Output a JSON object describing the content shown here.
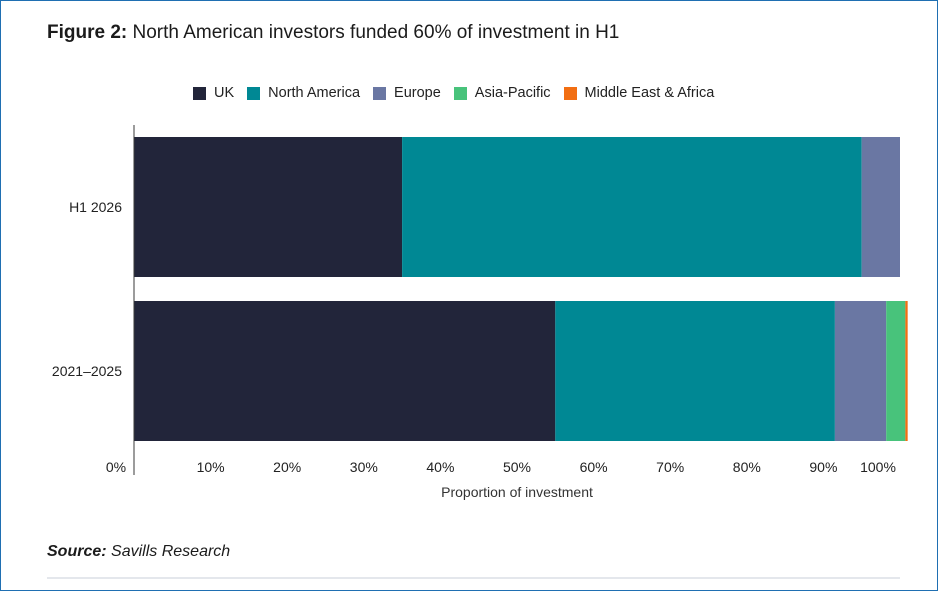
{
  "title": {
    "prefix": "Figure 2:",
    "text": "North American investors funded 60% of investment in H1"
  },
  "source": {
    "prefix": "Source:",
    "text": "Savills Research"
  },
  "chart_data": {
    "type": "bar",
    "orientation": "horizontal",
    "stacked": true,
    "categories": [
      "H1 2026",
      "2021–2025"
    ],
    "series": [
      {
        "name": "UK",
        "color": "#22253a",
        "values": [
          35,
          55
        ]
      },
      {
        "name": "North America",
        "color": "#008894",
        "values": [
          60,
          36.5
        ]
      },
      {
        "name": "Europe",
        "color": "#6a77a3",
        "values": [
          5,
          6.7
        ]
      },
      {
        "name": "Asia-Pacific",
        "color": "#48c37b",
        "values": [
          0,
          2.5
        ]
      },
      {
        "name": "Middle East & Africa",
        "color": "#f26e12",
        "values": [
          0,
          0.3
        ]
      }
    ],
    "xlabel": "Proportion of investment",
    "xlim": [
      0,
      100
    ],
    "xticks": [
      "0%",
      "10%",
      "20%",
      "30%",
      "40%",
      "50%",
      "60%",
      "70%",
      "80%",
      "90%",
      "100%"
    ],
    "grid": false,
    "legend_position": "top"
  }
}
